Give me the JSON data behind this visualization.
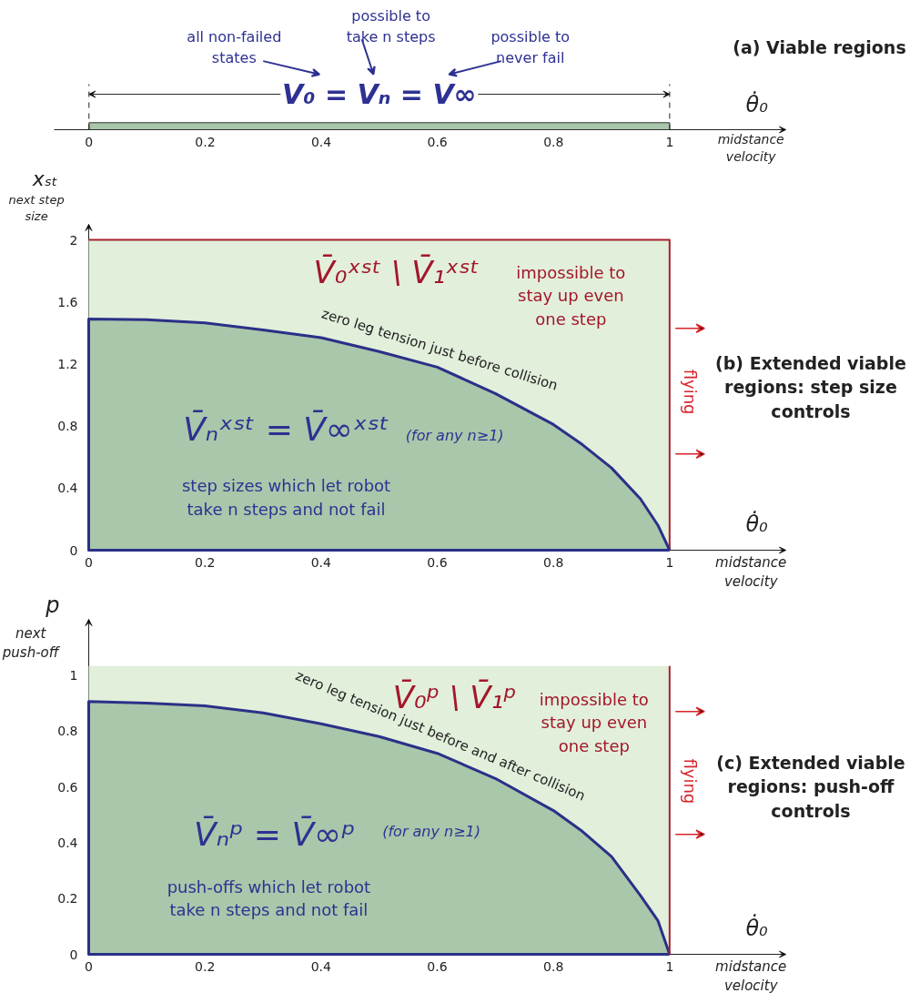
{
  "chart_data": [
    {
      "type": "bar",
      "orientation": "horizontal",
      "title": "(a) Viable regions",
      "xlabel": "θ̇₀",
      "categories": [
        null
      ],
      "values": [
        1
      ],
      "color": "#a9c7aa",
      "xlim": [
        -0.06,
        1.2
      ],
      "xticks": [
        0,
        0.2,
        0.4,
        0.6,
        0.8,
        1
      ],
      "tick_labels": "x",
      "grid": false,
      "ref_lines": [
        {
          "axis": "x",
          "value": 0,
          "line_style": "dashed"
        },
        {
          "axis": "x",
          "value": 1,
          "line_style": "dashed"
        }
      ],
      "annotations": [
        "V₀ = Vₙ = V∞",
        "all non-failed\nstates",
        "possible to\ntake n steps",
        "possible to\nnever fail",
        "midstance\nvelocity"
      ]
    },
    {
      "type": "area",
      "title": "(b) Extended viable regions: step size controls",
      "xlabel": "θ̇₀",
      "ylabel": "xₛₜ",
      "xlim": [
        0,
        1.2
      ],
      "ylim": [
        0,
        2.1
      ],
      "xticks": [
        0,
        0.2,
        0.4,
        0.6,
        0.8,
        1
      ],
      "yticks": [
        0,
        0.4,
        0.8,
        1.2,
        1.6,
        2
      ],
      "grid": false,
      "series": [
        {
          "type": "area",
          "color": "#e2efdb",
          "x": [
            0,
            1
          ],
          "values": [
            2,
            2
          ]
        },
        {
          "type": "area",
          "color": "#a9c7aa",
          "x": [
            0,
            0.1,
            0.2,
            0.3,
            0.4,
            0.5,
            0.6,
            0.7,
            0.8,
            0.85,
            0.9,
            0.95,
            0.98,
            1
          ],
          "values": [
            1.49,
            1.485,
            1.465,
            1.42,
            1.37,
            1.28,
            1.18,
            1.01,
            0.81,
            0.68,
            0.53,
            0.33,
            0.16,
            0
          ]
        }
      ],
      "annotations": [
        "V̄₀ˣˢᵗ \\ V̄₁ˣˢᵗ",
        "impossible to\nstay up even\none step",
        "flying",
        "V̄ₙˣˢᵗ = V̄∞ˣˢᵗ",
        "(for any n≥1)",
        "step sizes which let robot\ntake n steps and not fail",
        {
          "text": "zero leg tension just before collision",
          "x": 0.6,
          "y": 1.18
        },
        "next step\nsize",
        "midstance\nvelocity"
      ]
    },
    {
      "type": "area",
      "title": "(c) Extended viable regions: push-off controls",
      "xlabel": "θ̇₀",
      "ylabel": "p",
      "xlim": [
        0,
        1.2
      ],
      "ylim": [
        0,
        1.2
      ],
      "xticks": [
        0,
        0.2,
        0.4,
        0.6,
        0.8,
        1
      ],
      "yticks": [
        0,
        0.2,
        0.4,
        0.6,
        0.8,
        1
      ],
      "grid": false,
      "series": [
        {
          "type": "area",
          "color": "#e2efdb",
          "x": [
            0,
            1
          ],
          "values": [
            1.033,
            1.033
          ]
        },
        {
          "type": "area",
          "color": "#a9c7aa",
          "x": [
            0,
            0.1,
            0.2,
            0.3,
            0.4,
            0.5,
            0.6,
            0.7,
            0.8,
            0.85,
            0.9,
            0.95,
            0.98,
            1
          ],
          "values": [
            0.906,
            0.9,
            0.89,
            0.865,
            0.826,
            0.78,
            0.72,
            0.63,
            0.515,
            0.44,
            0.35,
            0.21,
            0.12,
            0
          ]
        },
        {
          "type": "line",
          "color": "#a8202e",
          "x": [
            1,
            1
          ],
          "values": [
            1.033,
            0
          ]
        }
      ],
      "annotations": [
        "V̄₀ᵖ \\ V̄₁ᵖ",
        "impossible to\nstay up even\none step",
        "flying",
        "V̄ₙᵖ = V̄∞ᵖ",
        "(for any n≥1)",
        "push-offs which let robot\ntake n steps and not fail",
        {
          "text": "zero leg tension just before and after collision",
          "x": 0.6,
          "y": 0.72
        },
        "next\npush-off",
        "midstance\nvelocity"
      ]
    }
  ]
}
